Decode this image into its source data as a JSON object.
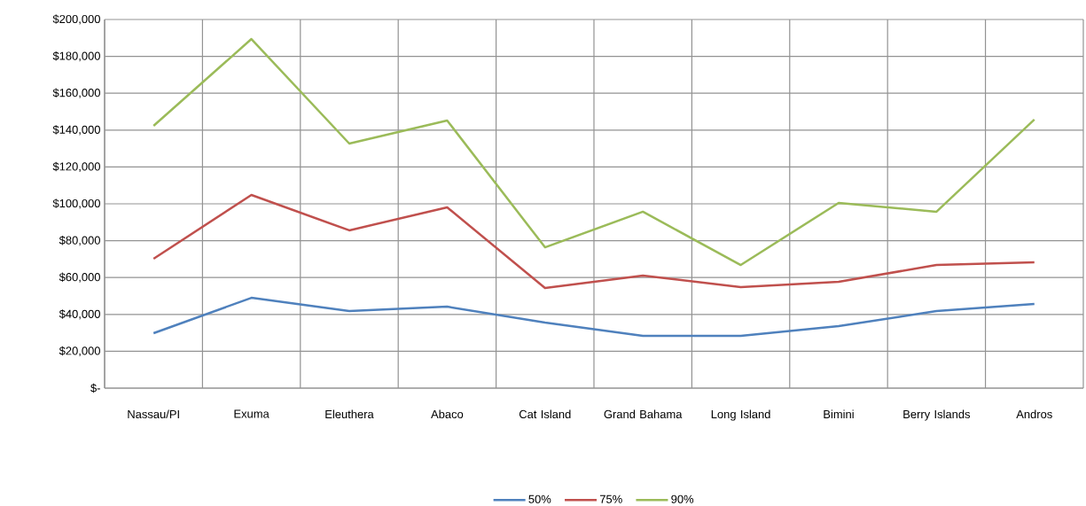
{
  "chart_data": {
    "type": "line",
    "categories": [
      "Nassau/PI",
      "Exuma",
      "Eleuthera",
      "Abaco",
      "Cat Island",
      "Grand Bahama",
      "Long Island",
      "Bimini",
      "Berry Islands",
      "Andros"
    ],
    "series": [
      {
        "name": "50%",
        "color": "#4f81bd",
        "values": [
          29800,
          49000,
          41800,
          44200,
          35600,
          28400,
          28400,
          33700,
          41800,
          45700
        ]
      },
      {
        "name": "75%",
        "color": "#c0504d",
        "values": [
          70200,
          104800,
          85600,
          98100,
          54300,
          61100,
          54800,
          57700,
          66800,
          68300
        ]
      },
      {
        "name": "90%",
        "color": "#9bbb59",
        "values": [
          142300,
          189400,
          132700,
          145200,
          76400,
          95700,
          66800,
          100500,
          95700,
          145700
        ]
      }
    ],
    "ylim": [
      0,
      200000
    ],
    "yticks": [
      {
        "value": 0,
        "label": "$-"
      },
      {
        "value": 20000,
        "label": "$20,000"
      },
      {
        "value": 40000,
        "label": "$40,000"
      },
      {
        "value": 60000,
        "label": "$60,000"
      },
      {
        "value": 80000,
        "label": "$80,000"
      },
      {
        "value": 100000,
        "label": "$100,000"
      },
      {
        "value": 120000,
        "label": "$120,000"
      },
      {
        "value": 140000,
        "label": "$140,000"
      },
      {
        "value": 160000,
        "label": "$160,000"
      },
      {
        "value": 180000,
        "label": "$180,000"
      },
      {
        "value": 200000,
        "label": "$200,000"
      }
    ],
    "grid": true,
    "legend": "bottom",
    "marker": "none",
    "line_style": "solid"
  }
}
